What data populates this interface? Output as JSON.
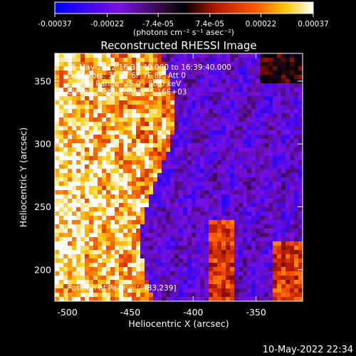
{
  "colorbar": {
    "ticks": [
      "-0.00037",
      "-0.00022",
      "-7.4e-05",
      "7.4e-05",
      "0.00022",
      "0.00037"
    ],
    "tick_values": [
      -0.00037,
      -0.00022,
      -7.4e-05,
      7.4e-05,
      0.00022,
      0.00037
    ],
    "range": [
      -0.00037,
      0.00037
    ],
    "unit_label": "(photons cm⁻² s⁻¹ asec⁻²)"
  },
  "chart_data": {
    "type": "heatmap",
    "title": "Reconstructed RHESSI Image",
    "xlabel": "Heliocentric X (arcsec)",
    "ylabel": "Heliocentric Y (arcsec)",
    "xlim": [
      -510,
      -313
    ],
    "ylim": [
      175,
      372
    ],
    "xticks": [
      -500,
      -450,
      -400,
      -350
    ],
    "yticks": [
      200,
      250,
      300,
      350
    ],
    "annotations": [
      "15-May-2012 16:33:40.000 to 16:39:40.000",
      "Detectors: 3F 5F 6F 7F 8F, Att 0",
      "Energy Range: 25.0 - 50.0 keV",
      "Clean     Total counts: 5.16E+03"
    ],
    "peak_label": "Position of Peak = [-483,239]",
    "peak_position": [
      -483,
      239
    ],
    "colormap_colors": [
      "#0000ff",
      "#6a18e8",
      "#2a0a32",
      "#000000",
      "#b01a00",
      "#ff5500",
      "#ffcc00",
      "#ffffff"
    ]
  },
  "footer": {
    "timestamp": "10-May-2022 22:34"
  }
}
